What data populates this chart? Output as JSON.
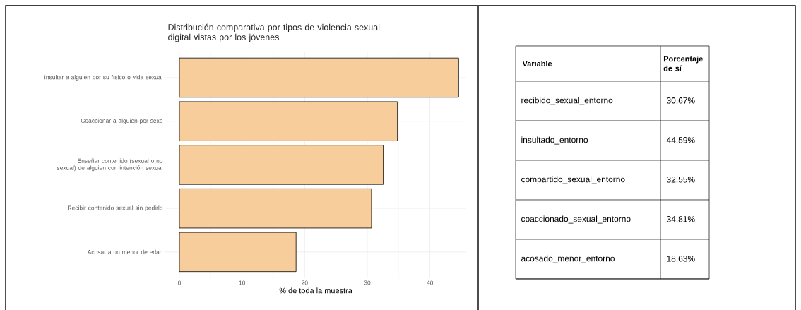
{
  "chart_data": [
    {
      "type": "bar",
      "orientation": "horizontal",
      "title": "Distribución comparativa por tipos de violencia sexual digital vistas por los jóvenes",
      "xlabel": "% de toda la muestra",
      "categories": [
        "Insultar a alguien por su físico o vida sexual",
        "Coaccionar a alguien por sexo",
        "Enseñar contenido (sexual o no sexual) de alguien con intención sexual",
        "Recibir contenido sexual sin pedirlo",
        "Acosar a un menor de edad"
      ],
      "values": [
        44.59,
        34.81,
        32.55,
        30.67,
        18.63
      ],
      "color": "#f8cd9c",
      "xlim": [
        -2.25,
        45.8
      ],
      "xticks": [
        0,
        10,
        20,
        30,
        40
      ],
      "grid": true
    },
    {
      "type": "other",
      "annotations": [
        "Variable",
        "Porcentaje de sí",
        "recibido_sexual_entorno",
        "30,67%",
        "insultado_entorno",
        "44,59%",
        "compartido_sexual_entorno",
        "32,55%",
        "coaccionado_sexual_entorno",
        "34,81%",
        "acosado_menor_entorno",
        "18,63%"
      ]
    }
  ]
}
